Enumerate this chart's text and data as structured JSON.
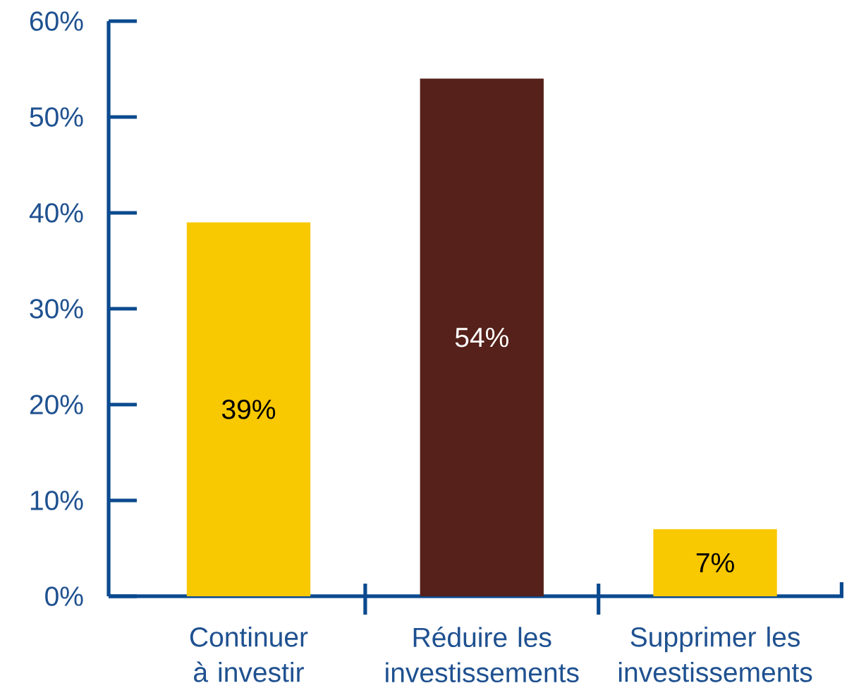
{
  "chart_data": {
    "type": "bar",
    "categories": [
      "Continuer à investir",
      "Réduire les investissements",
      "Supprimer les investissements"
    ],
    "values": [
      39,
      54,
      7
    ],
    "colors": [
      "#f8c800",
      "#55211a",
      "#f8c800"
    ],
    "value_labels": [
      "39%",
      "54%",
      "7%"
    ],
    "ylim": [
      0,
      60
    ],
    "yticks": [
      {
        "value": 0,
        "label": "0%"
      },
      {
        "value": 10,
        "label": "10%"
      },
      {
        "value": 20,
        "label": "20%"
      },
      {
        "value": 30,
        "label": "30%"
      },
      {
        "value": 40,
        "label": "40%"
      },
      {
        "value": 50,
        "label": "50%"
      },
      {
        "value": 60,
        "label": "60%"
      }
    ]
  }
}
